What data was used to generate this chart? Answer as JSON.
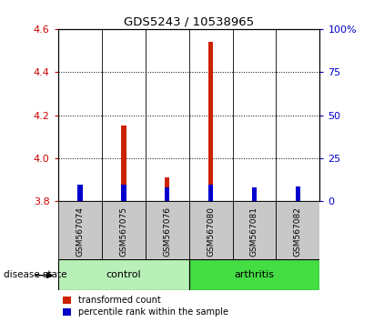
{
  "title": "GDS5243 / 10538965",
  "samples": [
    "GSM567074",
    "GSM567075",
    "GSM567076",
    "GSM567080",
    "GSM567081",
    "GSM567082"
  ],
  "red_values": [
    3.84,
    4.15,
    3.91,
    4.54,
    3.84,
    3.85
  ],
  "blue_values": [
    3.875,
    3.875,
    3.865,
    3.875,
    3.865,
    3.87
  ],
  "red_base": 3.8,
  "blue_base": 3.8,
  "ylim": [
    3.8,
    4.6
  ],
  "yticks": [
    3.8,
    4.0,
    4.2,
    4.4,
    4.6
  ],
  "right_yticks": [
    0,
    25,
    50,
    75,
    100
  ],
  "right_ylim": [
    0,
    100
  ],
  "left_color": "#cc0000",
  "right_color": "#0000cc",
  "control_color": "#b8f0b8",
  "arthritis_color": "#44dd44",
  "bar_bg_color": "#c8c8c8",
  "legend_red": "transformed count",
  "legend_blue": "percentile rank within the sample",
  "red_bar_color": "#cc2200",
  "blue_bar_color": "#0000cc"
}
